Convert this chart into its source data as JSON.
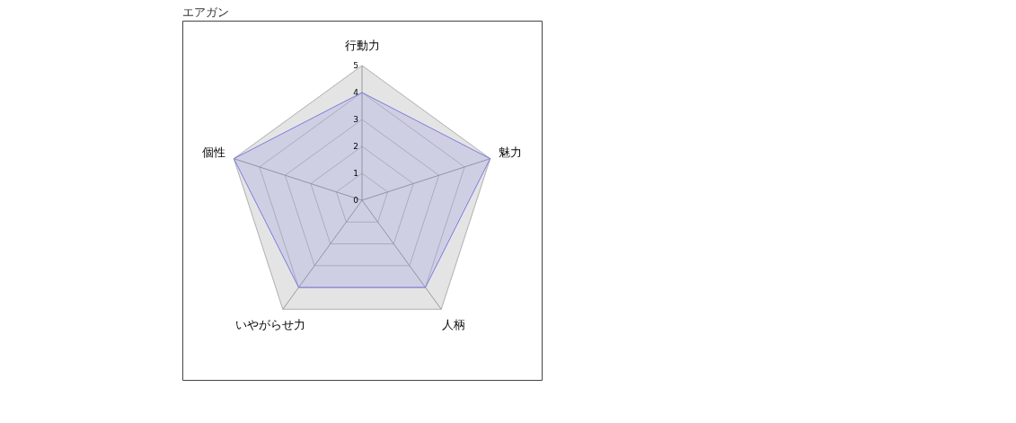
{
  "chart_data": {
    "type": "radar",
    "title": "エアガン",
    "categories": [
      "行動力",
      "魅力",
      "人柄",
      "いやがらせ力",
      "個性"
    ],
    "series": [
      {
        "color": "#7b7be0",
        "values": [
          4,
          5,
          4,
          4,
          5
        ]
      }
    ],
    "ylim": [
      0,
      5
    ],
    "yticks": [
      0,
      1,
      2,
      3,
      4,
      5
    ],
    "grid": true
  }
}
